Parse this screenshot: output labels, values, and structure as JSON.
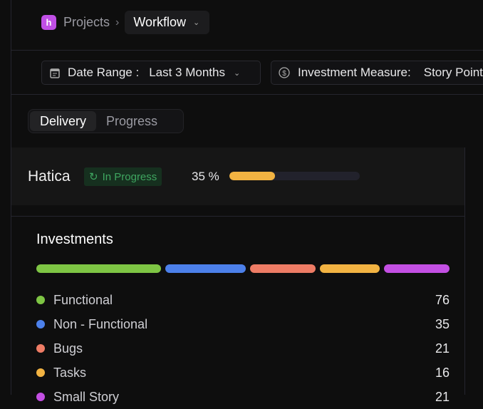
{
  "breadcrumb": {
    "logo": "h",
    "root": "Projects",
    "current": "Workflow"
  },
  "filters": {
    "date_label": "Date Range :",
    "date_value": "Last 3 Months",
    "measure_label": "Investment Measure:",
    "measure_value": "Story Points"
  },
  "tabs": [
    {
      "label": "Delivery",
      "active": true
    },
    {
      "label": "Progress",
      "active": false
    }
  ],
  "project": {
    "name": "Hatica",
    "status": "In Progress",
    "progress_text": "35 %",
    "progress": 35,
    "progress_color": "#f2b342"
  },
  "investments": {
    "title": "Investments",
    "items": [
      {
        "label": "Functional",
        "value": "76",
        "color": "#7ec544"
      },
      {
        "label": "Non - Functional",
        "value": "35",
        "color": "#4c80ea"
      },
      {
        "label": "Bugs",
        "value": "21",
        "color": "#ee7c65"
      },
      {
        "label": "Tasks",
        "value": "16",
        "color": "#f2b342"
      },
      {
        "label": "Small Story",
        "value": "21",
        "color": "#c34fe3"
      }
    ]
  }
}
